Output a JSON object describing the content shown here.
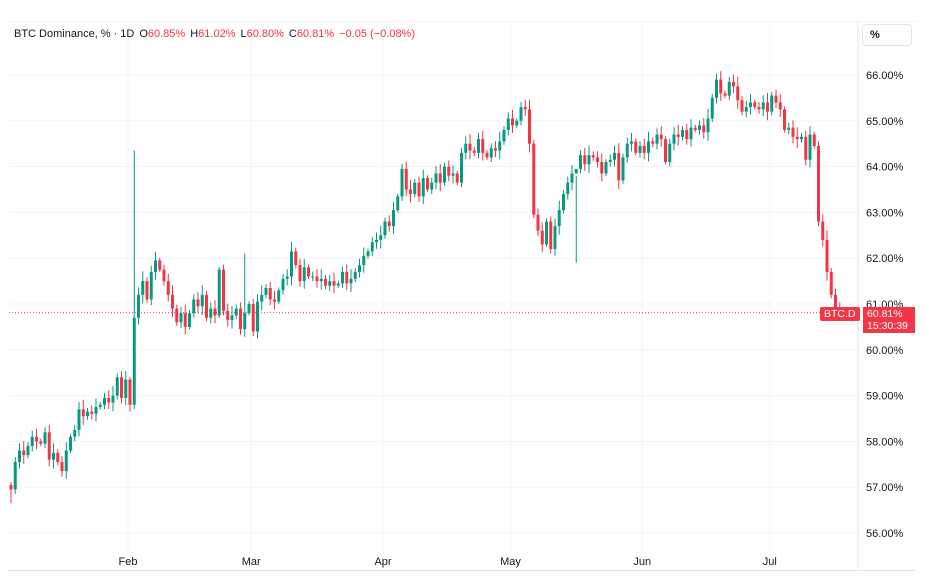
{
  "legend": {
    "symbol": "BTC Dominance, %",
    "separator": "·",
    "interval": "1D",
    "open_label": "O",
    "open": "60.85%",
    "high_label": "H",
    "high": "61.02%",
    "low_label": "L",
    "low": "60.80%",
    "close_label": "C",
    "close": "60.81%",
    "change": "−0.05 (−0.08%)"
  },
  "unit_button": "%",
  "badge": "BTC.D",
  "price_tag": {
    "value": "60.81%",
    "countdown": "15:30:39"
  },
  "colors": {
    "up": "#089981",
    "down": "#f23645",
    "grid": "#f0f3fa",
    "priceline": "#f23645"
  },
  "chart_data": {
    "type": "candlestick",
    "title": "BTC Dominance, %",
    "interval": "1D",
    "ylim": [
      55.7,
      66.4
    ],
    "yticks": [
      56,
      57,
      58,
      59,
      60,
      61,
      62,
      63,
      64,
      65,
      66
    ],
    "ytick_labels": [
      "56.00%",
      "57.00%",
      "58.00%",
      "59.00%",
      "60.00%",
      "61.00%",
      "62.00%",
      "63.00%",
      "64.00%",
      "65.00%",
      "66.00%"
    ],
    "x_labels": [
      {
        "label": "Feb",
        "index": 28
      },
      {
        "label": "Mar",
        "index": 57
      },
      {
        "label": "Apr",
        "index": 88
      },
      {
        "label": "May",
        "index": 118
      },
      {
        "label": "Jun",
        "index": 149
      },
      {
        "label": "Jul",
        "index": 179
      }
    ],
    "last_price": 60.81,
    "close": [
      56.95,
      57.55,
      57.8,
      57.7,
      57.9,
      58.1,
      58.0,
      57.95,
      58.2,
      57.6,
      57.75,
      57.55,
      57.35,
      57.8,
      58.1,
      58.25,
      58.7,
      58.55,
      58.65,
      58.6,
      58.75,
      58.8,
      58.95,
      58.85,
      59.0,
      59.4,
      58.95,
      59.35,
      58.8,
      60.7,
      61.2,
      61.5,
      61.1,
      61.7,
      61.95,
      61.75,
      61.5,
      61.2,
      60.9,
      60.6,
      60.8,
      60.5,
      60.8,
      61.1,
      60.95,
      61.2,
      60.7,
      60.9,
      60.75,
      61.75,
      60.85,
      60.65,
      60.75,
      60.9,
      60.45,
      60.8,
      61.0,
      60.4,
      61.05,
      61.2,
      61.35,
      61.1,
      61.05,
      61.3,
      61.55,
      61.6,
      62.15,
      61.85,
      61.5,
      61.8,
      61.6,
      61.6,
      61.5,
      61.55,
      61.4,
      61.5,
      61.4,
      61.45,
      61.7,
      61.45,
      61.55,
      61.7,
      61.85,
      62.05,
      62.15,
      62.35,
      62.4,
      62.5,
      62.8,
      62.7,
      63.05,
      63.35,
      63.95,
      63.5,
      63.4,
      63.65,
      63.35,
      63.75,
      63.5,
      63.65,
      63.85,
      63.65,
      64.0,
      63.8,
      63.85,
      63.65,
      64.3,
      64.5,
      64.35,
      64.3,
      64.6,
      64.3,
      64.2,
      64.4,
      64.35,
      64.55,
      64.8,
      65.05,
      64.9,
      65.0,
      65.3,
      65.25,
      64.5,
      62.95,
      62.6,
      62.3,
      62.8,
      62.2,
      62.7,
      63.05,
      63.4,
      63.65,
      63.85,
      63.95,
      64.25,
      64.05,
      64.25,
      64.2,
      64.1,
      63.85,
      64.1,
      64.15,
      64.3,
      63.7,
      64.2,
      64.5,
      64.55,
      64.3,
      64.45,
      64.3,
      64.55,
      64.5,
      64.7,
      64.6,
      64.1,
      64.5,
      64.7,
      64.65,
      64.8,
      64.6,
      64.85,
      64.8,
      64.9,
      64.75,
      65.05,
      65.5,
      65.9,
      65.6,
      65.55,
      65.85,
      65.75,
      65.45,
      65.2,
      65.3,
      65.4,
      65.3,
      65.25,
      65.4,
      65.2,
      65.55,
      65.4,
      65.25,
      64.8,
      64.85,
      64.65,
      64.6,
      64.65,
      64.15,
      64.7,
      64.45,
      62.8,
      62.4,
      61.7,
      61.2,
      60.85,
      60.81
    ],
    "open_first": 57.05,
    "highs_override": [
      {
        "index": 29,
        "high": 64.35
      },
      {
        "index": 133,
        "high": 61.9
      },
      {
        "index": 55,
        "high": 62.1
      }
    ],
    "lows_override": [
      {
        "index": 0,
        "low": 56.65
      },
      {
        "index": 28,
        "low": 58.65
      }
    ]
  }
}
